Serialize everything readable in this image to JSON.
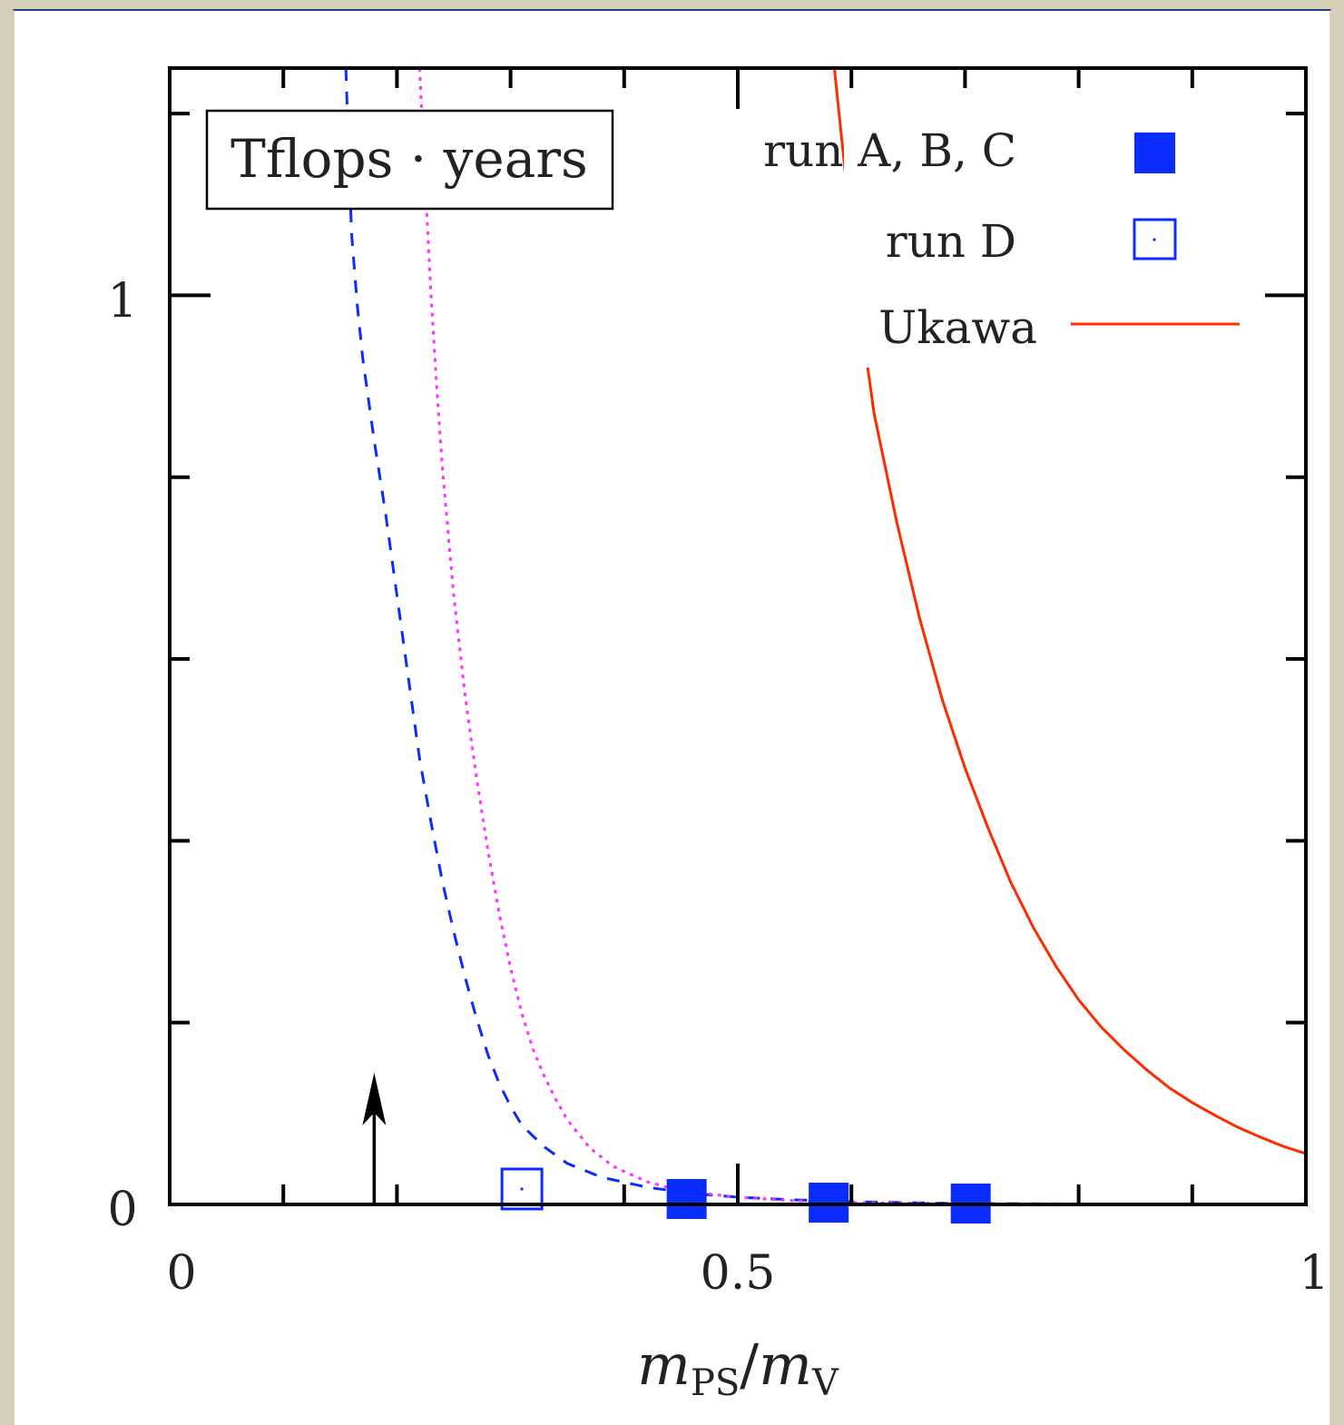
{
  "chart_data": {
    "type": "scatter",
    "title": "",
    "inset_label": "Tflops · years",
    "xlabel": "mPS/mV",
    "xlabel_parts": {
      "m1": "m",
      "sub1": "PS",
      "slash": "/",
      "m2": "m",
      "sub2": "V"
    },
    "ylabel": "",
    "xlim": [
      0,
      1
    ],
    "ylim": [
      0,
      1.25
    ],
    "x_tick_labels": [
      "0",
      "0.5",
      "1"
    ],
    "y_tick_labels": [
      "0",
      "1"
    ],
    "x_tick_values": [
      0,
      0.5,
      1
    ],
    "y_tick_values": [
      0,
      1
    ],
    "x_minor_ticks": [
      0.1,
      0.2,
      0.3,
      0.4,
      0.5,
      0.6,
      0.7,
      0.8,
      0.9
    ],
    "y_minor_ticks": [
      0.2,
      0.4,
      0.6,
      0.8,
      1.0,
      1.2
    ],
    "arrow": {
      "x": 0.18,
      "y_from": 0.0,
      "y_to": 0.08
    },
    "legend_position": "top-right",
    "legend": [
      {
        "label": "run A, B, C",
        "marker": "filled-square",
        "color": "#0a2cff"
      },
      {
        "label": "run D",
        "marker": "open-square",
        "color": "#0a2cff"
      },
      {
        "label": "Ukawa",
        "marker": "line",
        "color": "#ff2a00"
      }
    ],
    "series": [
      {
        "name": "run A, B, C",
        "marker": "filled-square",
        "color": "#0a2cff",
        "points": [
          [
            0.455,
            0.006
          ],
          [
            0.58,
            0.002
          ],
          [
            0.705,
            0.001
          ]
        ]
      },
      {
        "name": "run D",
        "marker": "open-square",
        "color": "#0a2cff",
        "points": [
          [
            0.31,
            0.017
          ]
        ]
      }
    ],
    "curves": [
      {
        "name": "Ukawa",
        "style": "solid",
        "color": "#ff2a00",
        "points": [
          [
            0.585,
            1.25
          ],
          [
            0.6,
            1.07
          ],
          [
            0.61,
            0.96
          ],
          [
            0.62,
            0.87
          ],
          [
            0.64,
            0.75
          ],
          [
            0.66,
            0.645
          ],
          [
            0.68,
            0.555
          ],
          [
            0.7,
            0.48
          ],
          [
            0.72,
            0.415
          ],
          [
            0.74,
            0.355
          ],
          [
            0.76,
            0.305
          ],
          [
            0.78,
            0.262
          ],
          [
            0.8,
            0.225
          ],
          [
            0.82,
            0.195
          ],
          [
            0.84,
            0.17
          ],
          [
            0.86,
            0.148
          ],
          [
            0.88,
            0.128
          ],
          [
            0.9,
            0.112
          ],
          [
            0.92,
            0.098
          ],
          [
            0.94,
            0.085
          ],
          [
            0.96,
            0.074
          ],
          [
            0.98,
            0.064
          ],
          [
            1.0,
            0.056
          ]
        ]
      },
      {
        "style": "dashed",
        "color": "#0a2cff",
        "points": [
          [
            0.155,
            1.25
          ],
          [
            0.16,
            1.07
          ],
          [
            0.165,
            0.99
          ],
          [
            0.17,
            0.93
          ],
          [
            0.18,
            0.84
          ],
          [
            0.19,
            0.76
          ],
          [
            0.2,
            0.67
          ],
          [
            0.21,
            0.58
          ],
          [
            0.22,
            0.49
          ],
          [
            0.23,
            0.42
          ],
          [
            0.24,
            0.355
          ],
          [
            0.25,
            0.3
          ],
          [
            0.26,
            0.25
          ],
          [
            0.27,
            0.205
          ],
          [
            0.28,
            0.165
          ],
          [
            0.29,
            0.133
          ],
          [
            0.3,
            0.108
          ],
          [
            0.31,
            0.087
          ],
          [
            0.33,
            0.063
          ],
          [
            0.35,
            0.045
          ],
          [
            0.38,
            0.03
          ],
          [
            0.42,
            0.019
          ],
          [
            0.46,
            0.012
          ],
          [
            0.5,
            0.008
          ],
          [
            0.55,
            0.005
          ],
          [
            0.6,
            0.003
          ],
          [
            0.7,
            0.001
          ],
          [
            0.8,
            0.0005
          ]
        ]
      },
      {
        "style": "dotted",
        "color": "#ff33ff",
        "points": [
          [
            0.22,
            1.25
          ],
          [
            0.225,
            1.12
          ],
          [
            0.23,
            1.0
          ],
          [
            0.235,
            0.9
          ],
          [
            0.24,
            0.81
          ],
          [
            0.25,
            0.67
          ],
          [
            0.26,
            0.56
          ],
          [
            0.27,
            0.47
          ],
          [
            0.28,
            0.39
          ],
          [
            0.29,
            0.32
          ],
          [
            0.3,
            0.26
          ],
          [
            0.31,
            0.21
          ],
          [
            0.32,
            0.17
          ],
          [
            0.33,
            0.14
          ],
          [
            0.34,
            0.115
          ],
          [
            0.35,
            0.093
          ],
          [
            0.37,
            0.062
          ],
          [
            0.39,
            0.042
          ],
          [
            0.42,
            0.025
          ],
          [
            0.45,
            0.015
          ],
          [
            0.5,
            0.008
          ],
          [
            0.55,
            0.004
          ],
          [
            0.6,
            0.002
          ],
          [
            0.7,
            0.001
          ]
        ]
      }
    ]
  }
}
